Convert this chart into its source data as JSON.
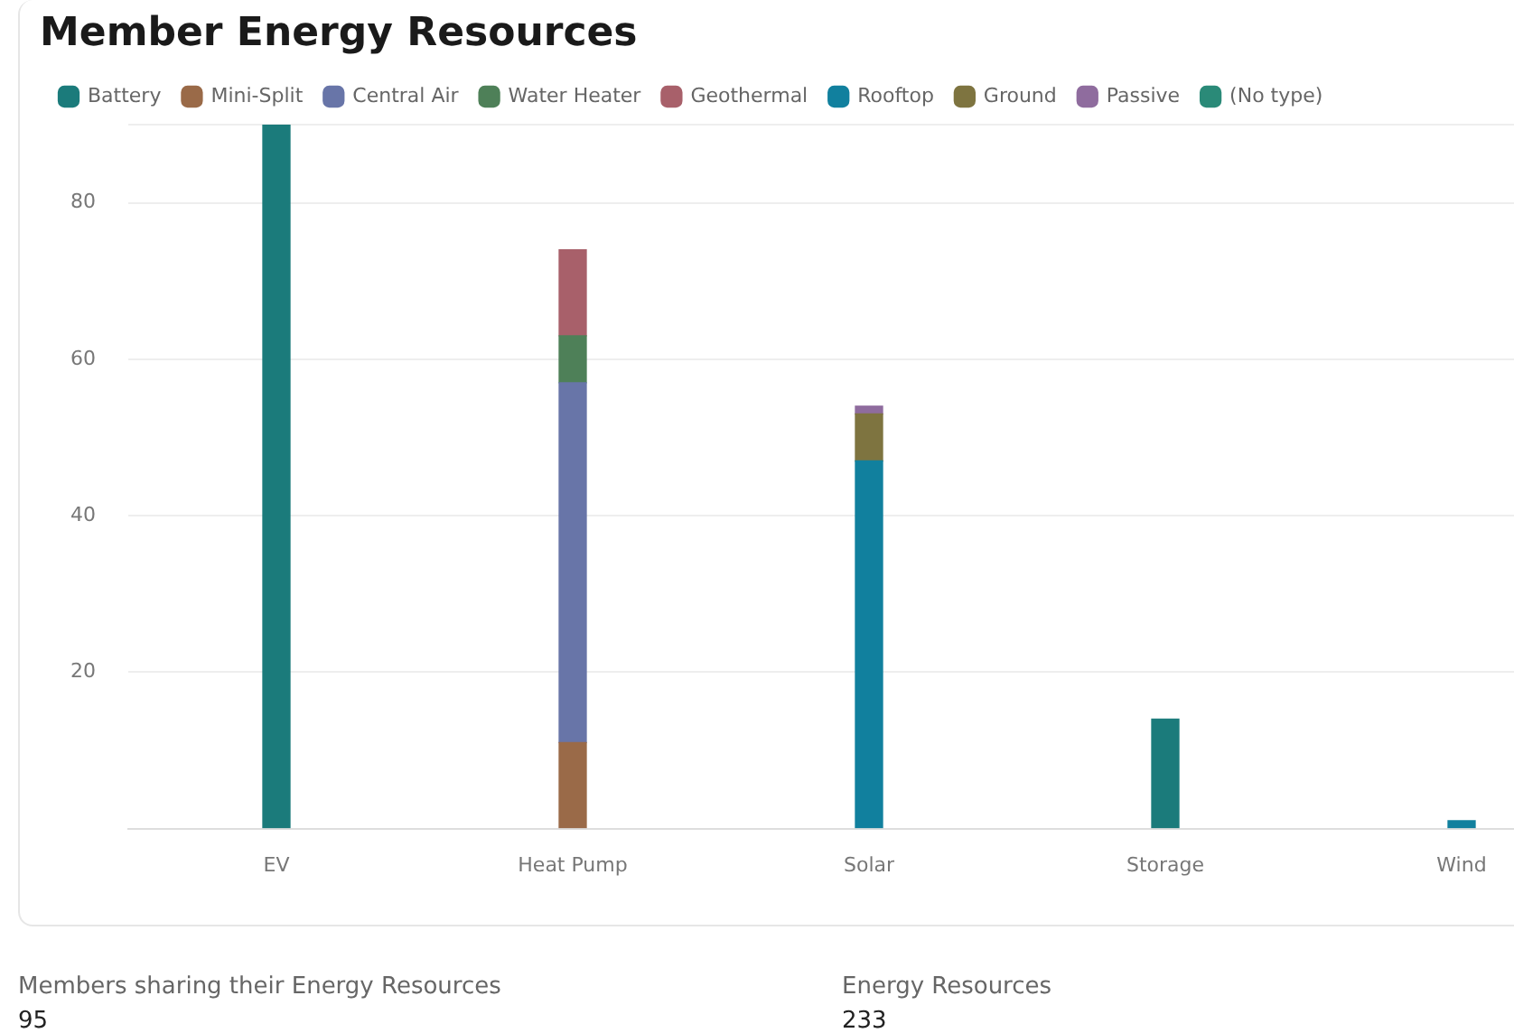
{
  "chart_data": {
    "type": "bar",
    "title": "Member Energy Resources",
    "categories": [
      "EV",
      "Heat Pump",
      "Solar",
      "Storage",
      "Wind"
    ],
    "stacked": true,
    "ylim": [
      0,
      90
    ],
    "yticks": [
      {
        "value": 0,
        "label": null
      },
      20,
      40,
      60,
      80,
      {
        "value": 90,
        "label": null
      }
    ],
    "grid": "y",
    "legend": "top left",
    "series": [
      {
        "name": "Battery",
        "color": "#1b7b7b",
        "values": [
          90,
          null,
          null,
          14,
          null
        ]
      },
      {
        "name": "Mini-Split",
        "color": "#9a6a48",
        "values": [
          null,
          11,
          null,
          null,
          null
        ]
      },
      {
        "name": "Central Air",
        "color": "#6875a8",
        "values": [
          null,
          46,
          null,
          null,
          null
        ]
      },
      {
        "name": "Water Heater",
        "color": "#4e8058",
        "values": [
          null,
          6,
          null,
          null,
          null
        ]
      },
      {
        "name": "Geothermal",
        "color": "#a8606a",
        "values": [
          null,
          11,
          null,
          null,
          null
        ]
      },
      {
        "name": "Rooftop",
        "color": "#11809e",
        "values": [
          null,
          null,
          47,
          null,
          1
        ]
      },
      {
        "name": "Ground",
        "color": "#7e7440",
        "values": [
          null,
          null,
          6,
          null,
          null
        ]
      },
      {
        "name": "Passive",
        "color": "#8f6c9e",
        "values": [
          null,
          null,
          1,
          null,
          null
        ]
      },
      {
        "name": "(No type)",
        "color": "#2a8a78",
        "values": [
          null,
          null,
          null,
          null,
          null
        ]
      }
    ],
    "annotations": [
      "Members sharing their Energy Resources",
      "95",
      "Energy Resources",
      "233"
    ]
  }
}
